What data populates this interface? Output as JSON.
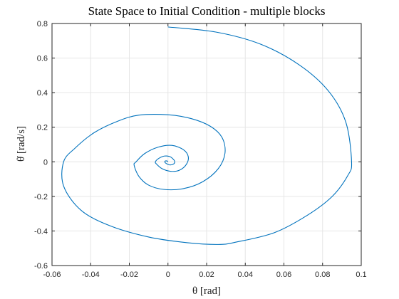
{
  "chart_data": {
    "type": "line",
    "title": "State Space to Initial Condition - multiple blocks",
    "xlabel": "θ [rad]",
    "ylabel": "θ̇ [rad/s]",
    "xlim": [
      -0.06,
      0.1
    ],
    "ylim": [
      -0.6,
      0.8
    ],
    "xticks": [
      -0.06,
      -0.04,
      -0.02,
      0,
      0.02,
      0.04,
      0.06,
      0.08,
      0.1
    ],
    "xtick_labels": [
      "-0.06",
      "-0.04",
      "-0.02",
      "0",
      "0.02",
      "0.04",
      "0.06",
      "0.08",
      "0.1"
    ],
    "yticks": [
      -0.6,
      -0.4,
      -0.2,
      0,
      0.2,
      0.4,
      0.6,
      0.8
    ],
    "ytick_labels": [
      "-0.6",
      "-0.4",
      "-0.2",
      "0",
      "0.2",
      "0.4",
      "0.6",
      "0.8"
    ],
    "grid": true,
    "legend": false,
    "color": "#0072BD",
    "series": [
      {
        "x": [
          0.0,
          0.025,
          0.048,
          0.068,
          0.083,
          0.092,
          0.095,
          0.093,
          0.085,
          0.072,
          0.055,
          0.035,
          0.026,
          0.01,
          -0.01,
          -0.03,
          -0.045,
          -0.054,
          -0.054,
          -0.048,
          -0.038,
          -0.026,
          -0.015,
          0.0,
          0.012,
          0.022,
          0.028,
          0.0295,
          0.026,
          0.018,
          0.008,
          -0.002,
          -0.01,
          -0.015,
          -0.0175,
          -0.0165,
          -0.012,
          -0.005,
          0.002,
          0.008,
          0.0105,
          0.0095,
          0.006,
          0.0015,
          -0.003,
          -0.006,
          -0.0065,
          -0.005,
          -0.002,
          0.001,
          0.003,
          0.0035,
          0.003,
          0.001,
          -0.0005,
          -0.0015,
          -0.0015,
          -0.0005,
          0.0
        ],
        "y": [
          0.78,
          0.75,
          0.68,
          0.56,
          0.41,
          0.23,
          0.0,
          -0.08,
          -0.2,
          -0.31,
          -0.41,
          -0.465,
          -0.478,
          -0.468,
          -0.435,
          -0.37,
          -0.28,
          -0.14,
          0.0,
          0.08,
          0.17,
          0.235,
          0.27,
          0.272,
          0.25,
          0.205,
          0.14,
          0.05,
          -0.04,
          -0.115,
          -0.155,
          -0.16,
          -0.135,
          -0.085,
          -0.02,
          0.0,
          0.048,
          0.085,
          0.095,
          0.07,
          0.03,
          -0.015,
          -0.048,
          -0.055,
          -0.04,
          -0.012,
          0.0,
          0.018,
          0.033,
          0.03,
          0.012,
          0.0,
          -0.012,
          -0.018,
          -0.012,
          -0.004,
          0.004,
          0.005,
          0.0
        ]
      }
    ]
  }
}
